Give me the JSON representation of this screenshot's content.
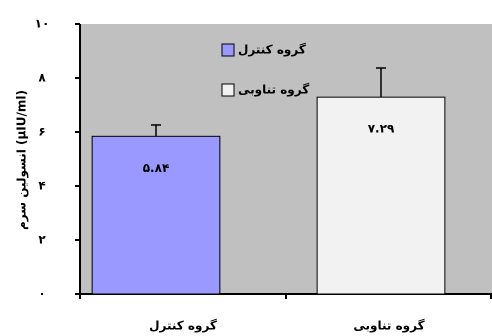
{
  "chart_data": {
    "type": "bar",
    "y_label": "انسولین سرم (µIU/ml)",
    "categories": [
      "گروه کنترل",
      "گروه تناوبی"
    ],
    "values": [
      5.84,
      7.29
    ],
    "value_labels": [
      "۵.۸۴",
      "۷.۲۹"
    ],
    "errors": [
      0.42,
      1.08
    ],
    "colors": [
      "#9999ff",
      "#f2f2f2"
    ],
    "plot_background": "#c0c0c0",
    "ylim": [
      0,
      10
    ],
    "yticks": [
      {
        "value": 0,
        "label": "۰"
      },
      {
        "value": 2,
        "label": "۲"
      },
      {
        "value": 4,
        "label": "۴"
      },
      {
        "value": 6,
        "label": "۶"
      },
      {
        "value": 8,
        "label": "۸"
      },
      {
        "value": 10,
        "label": "۱۰"
      }
    ],
    "legend": true
  }
}
